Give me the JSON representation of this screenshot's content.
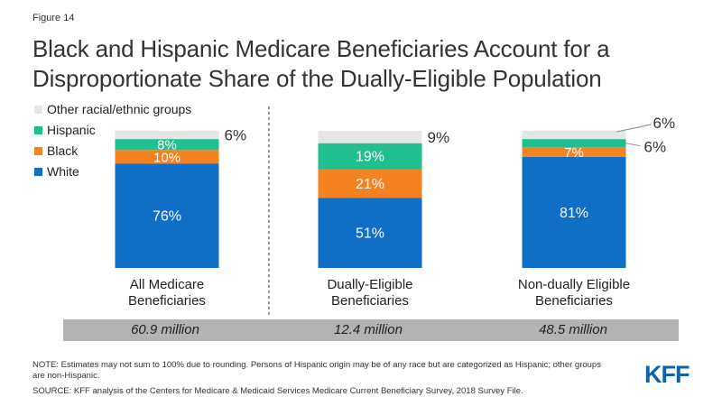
{
  "figure_label": "Figure 14",
  "title": "Black and Hispanic Medicare Beneficiaries Account for a Disproportionate Share of the Dually-Eligible Population",
  "notes": {
    "note": "NOTE: Estimates may not sum to 100% due to rounding.  Persons of Hispanic origin may be of any race but are categorized as Hispanic; other groups are non-Hispanic.",
    "source": "SOURCE: KFF analysis of the Centers for Medicare & Medicaid Services Medicare Current Beneficiary Survey, 2018 Survey File."
  },
  "logo_text": "KFF",
  "totals": [
    "60.9 million",
    "12.4 million",
    "48.5 million"
  ],
  "chart_data": {
    "type": "bar",
    "stacked": true,
    "categories": [
      "All Medicare Beneficiaries",
      "Dually-Eligible Beneficiaries",
      "Non-dually Eligible Beneficiaries"
    ],
    "category_lines": [
      [
        "All Medicare",
        "Beneficiaries"
      ],
      [
        "Dually-Eligible",
        "Beneficiaries"
      ],
      [
        "Non-dually Eligible",
        "Beneficiaries"
      ]
    ],
    "ylim": [
      0,
      100
    ],
    "legend_position": "top-left",
    "series": [
      {
        "name": "White",
        "values": [
          76,
          51,
          81
        ],
        "labels": [
          "76%",
          "51%",
          "81%"
        ],
        "color": "#0f6fc6"
      },
      {
        "name": "Black",
        "values": [
          10,
          21,
          7
        ],
        "labels": [
          "10%",
          "21%",
          "7%"
        ],
        "color": "#f58220"
      },
      {
        "name": "Hispanic",
        "values": [
          8,
          19,
          6
        ],
        "labels": [
          "8%",
          "19%",
          "6%"
        ],
        "color": "#1fbf8f"
      },
      {
        "name": "Other racial/ethnic groups",
        "values": [
          6,
          9,
          6
        ],
        "labels": [
          "6%",
          "9%",
          "6%"
        ],
        "color": "#e6e6e6"
      }
    ]
  }
}
